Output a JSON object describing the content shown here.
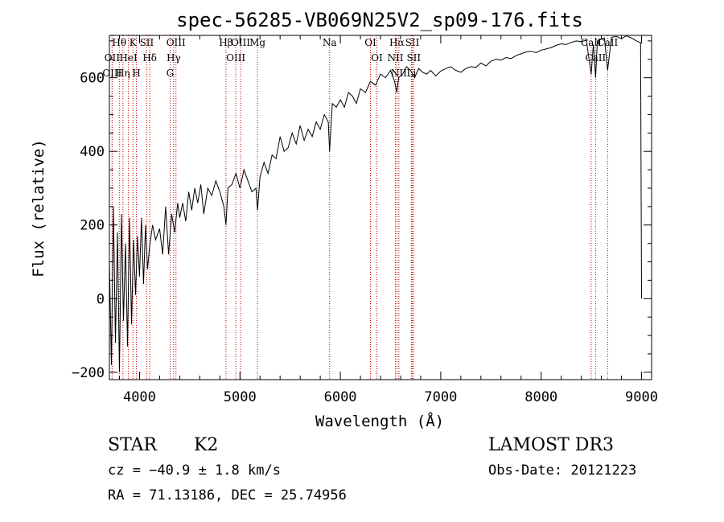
{
  "chart_data": {
    "type": "line",
    "title": "spec-56285-VB069N25V2_sp09-176.fits",
    "xlabel": "Wavelength (Å)",
    "ylabel": "Flux (relative)",
    "xlim": [
      3700,
      9100
    ],
    "ylim": [
      -220,
      715
    ],
    "xticks": [
      4000,
      5000,
      6000,
      7000,
      8000,
      9000
    ],
    "yticks": [
      -200,
      0,
      200,
      400,
      600
    ],
    "series": [
      {
        "name": "flux",
        "x": [
          3700,
          3720,
          3740,
          3760,
          3780,
          3800,
          3820,
          3840,
          3860,
          3880,
          3900,
          3920,
          3940,
          3960,
          3980,
          4000,
          4020,
          4040,
          4060,
          4080,
          4100,
          4130,
          4160,
          4200,
          4230,
          4260,
          4290,
          4320,
          4350,
          4380,
          4400,
          4430,
          4460,
          4490,
          4520,
          4550,
          4580,
          4610,
          4640,
          4680,
          4720,
          4760,
          4800,
          4840,
          4861,
          4880,
          4920,
          4960,
          5000,
          5040,
          5080,
          5120,
          5160,
          5175,
          5200,
          5240,
          5280,
          5320,
          5360,
          5400,
          5440,
          5480,
          5520,
          5560,
          5600,
          5640,
          5680,
          5720,
          5760,
          5800,
          5840,
          5880,
          5893,
          5920,
          5960,
          6000,
          6040,
          6080,
          6120,
          6160,
          6200,
          6250,
          6300,
          6350,
          6400,
          6450,
          6500,
          6540,
          6563,
          6580,
          6620,
          6660,
          6700,
          6740,
          6780,
          6820,
          6860,
          6900,
          6950,
          7000,
          7050,
          7100,
          7150,
          7200,
          7250,
          7300,
          7350,
          7400,
          7450,
          7500,
          7550,
          7600,
          7650,
          7700,
          7750,
          7800,
          7850,
          7900,
          7950,
          8000,
          8050,
          8100,
          8150,
          8200,
          8250,
          8300,
          8350,
          8400,
          8450,
          8498,
          8520,
          8542,
          8560,
          8600,
          8630,
          8662,
          8700,
          8750,
          8800,
          8850,
          8900,
          8950,
          8990,
          9000
        ],
        "y": [
          100,
          -180,
          250,
          -120,
          180,
          -200,
          230,
          -60,
          150,
          -130,
          220,
          -70,
          160,
          10,
          170,
          60,
          220,
          40,
          200,
          80,
          140,
          200,
          160,
          190,
          120,
          250,
          120,
          230,
          180,
          260,
          220,
          260,
          210,
          290,
          240,
          300,
          260,
          310,
          230,
          300,
          280,
          320,
          290,
          250,
          200,
          300,
          310,
          340,
          300,
          350,
          320,
          290,
          300,
          240,
          330,
          370,
          340,
          390,
          380,
          440,
          400,
          410,
          450,
          420,
          470,
          430,
          460,
          440,
          480,
          460,
          500,
          480,
          400,
          530,
          520,
          540,
          520,
          560,
          550,
          530,
          570,
          560,
          590,
          580,
          610,
          600,
          620,
          590,
          560,
          600,
          610,
          630,
          620,
          600,
          625,
          615,
          610,
          620,
          605,
          618,
          625,
          630,
          620,
          615,
          625,
          630,
          628,
          640,
          632,
          645,
          650,
          648,
          655,
          652,
          660,
          665,
          670,
          672,
          668,
          675,
          678,
          682,
          688,
          692,
          690,
          696,
          700,
          698,
          702,
          610,
          690,
          600,
          700,
          705,
          708,
          620,
          710,
          712,
          706,
          714,
          708,
          700,
          695,
          0
        ]
      }
    ],
    "lines": [
      {
        "label": "Hθ",
        "x": 3798
      },
      {
        "label": "OII",
        "x": 3727
      },
      {
        "label": "OIII",
        "x": 3727
      },
      {
        "label": "HeI",
        "x": 3889
      },
      {
        "label": "Hη",
        "x": 3835
      },
      {
        "label": "K",
        "x": 3934
      },
      {
        "label": "H",
        "x": 3969
      },
      {
        "label": "SII",
        "x": 4072
      },
      {
        "label": "Hδ",
        "x": 4102
      },
      {
        "label": "OIII",
        "x": 4363
      },
      {
        "label": "Hγ",
        "x": 4340
      },
      {
        "label": "G",
        "x": 4305
      },
      {
        "label": "Hβ",
        "x": 4861
      },
      {
        "label": "OIII",
        "x": 4959
      },
      {
        "label": "OIII",
        "x": 5007
      },
      {
        "label": "Mg",
        "x": 5175
      },
      {
        "label": "Na",
        "x": 5893
      },
      {
        "label": "OI",
        "x": 6300
      },
      {
        "label": "OI",
        "x": 6364
      },
      {
        "label": "Hα",
        "x": 6563
      },
      {
        "label": "NII",
        "x": 6548
      },
      {
        "label": "NII",
        "x": 6583
      },
      {
        "label": "SII",
        "x": 6717
      },
      {
        "label": "SII",
        "x": 6731
      },
      {
        "label": "Li",
        "x": 6708
      },
      {
        "label": "CaII",
        "x": 8498
      },
      {
        "label": "CaII",
        "x": 8542
      },
      {
        "label": "CaII",
        "x": 8662
      }
    ],
    "grid": false,
    "legend": "none"
  },
  "info": {
    "class_label": "STAR",
    "subclass": "K2",
    "cz": "cz = −40.9 ± 1.8 km/s",
    "radec": "RA =  71.13186, DEC =  25.74956",
    "survey": "LAMOST DR3",
    "obs_date": "Obs-Date: 20121223"
  }
}
